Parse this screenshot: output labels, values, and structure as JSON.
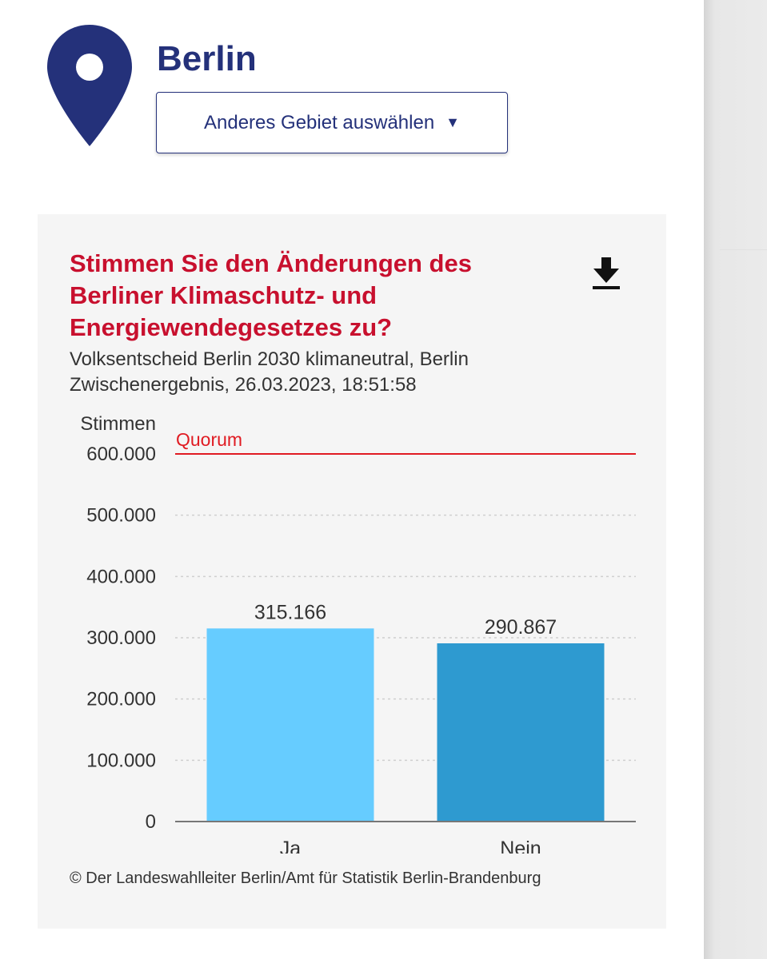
{
  "header": {
    "area_name": "Berlin",
    "area_button_label": "Anderes Gebiet auswählen",
    "area_button_caret": "▼",
    "pin_icon": "location-pin-icon",
    "colors": {
      "brand": "#24317a"
    }
  },
  "card": {
    "title": "Stimmen Sie den Änderungen des Berliner Klimaschutz- und Energiewendegesetzes zu?",
    "subtitle_line1": "Volksentscheid Berlin 2030 klimaneutral, Berlin",
    "subtitle_line2": "Zwischenergebnis, 26.03.2023, 18:51:58",
    "download_icon": "download-icon",
    "source": "© Der Landeswahlleiter Berlin/Amt für Statistik Berlin-Brandenburg",
    "colors": {
      "title": "#c8102e",
      "background": "#f5f5f5"
    }
  },
  "chart_data": {
    "type": "bar",
    "ylabel": "Stimmen",
    "categories": [
      "Ja",
      "Nein"
    ],
    "values": [
      315166,
      290867
    ],
    "value_labels": [
      "315.166",
      "290.867"
    ],
    "bar_colors": [
      "#66ccff",
      "#2e9ad0"
    ],
    "ylim": [
      0,
      600000
    ],
    "yticks": [
      0,
      100000,
      200000,
      300000,
      400000,
      500000,
      600000
    ],
    "ytick_labels": [
      "0",
      "100.000",
      "200.000",
      "300.000",
      "400.000",
      "500.000",
      "600.000"
    ],
    "grid": true,
    "reference_line": {
      "label": "Quorum",
      "value": 600000,
      "color": "#e01b22"
    }
  }
}
